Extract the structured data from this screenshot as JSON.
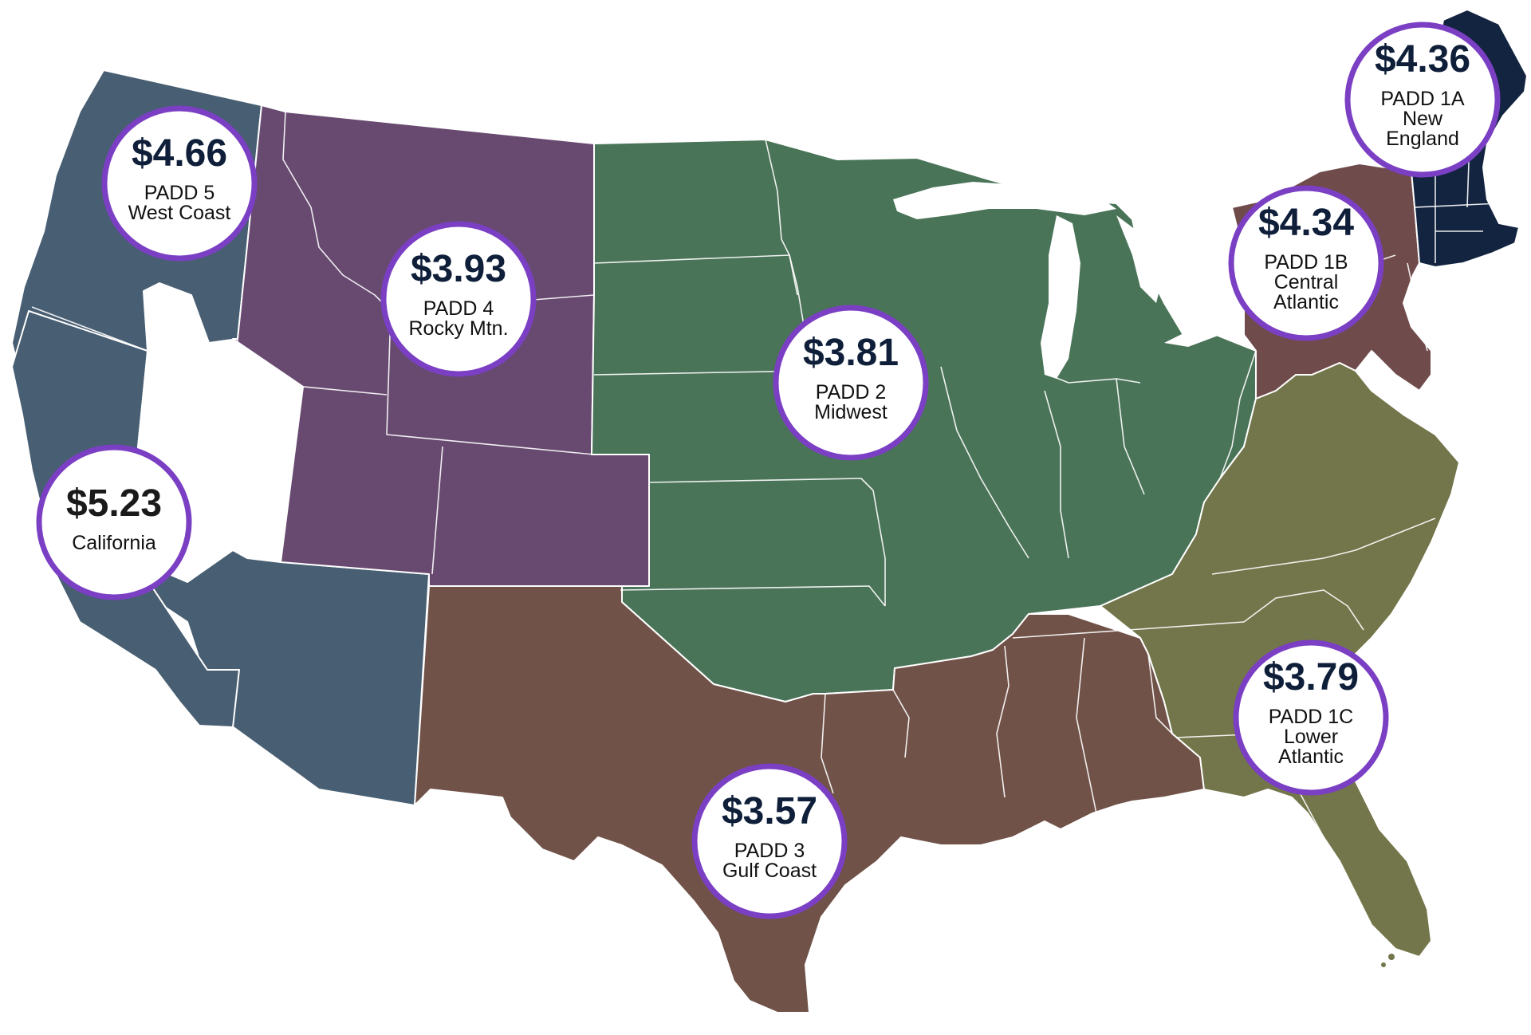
{
  "regions": [
    {
      "id": "padd5",
      "price": "$4.66",
      "label_lines": [
        "PADD 5",
        "West Coast"
      ],
      "color": "#485e72"
    },
    {
      "id": "california",
      "price": "$5.23",
      "label_lines": [
        "California"
      ],
      "color": "#485e72"
    },
    {
      "id": "padd4",
      "price": "$3.93",
      "label_lines": [
        "PADD 4",
        "Rocky Mtn."
      ],
      "color": "#684a70"
    },
    {
      "id": "padd2",
      "price": "$3.81",
      "label_lines": [
        "PADD 2",
        "Midwest"
      ],
      "color": "#4a7458"
    },
    {
      "id": "padd3",
      "price": "$3.57",
      "label_lines": [
        "PADD 3",
        "Gulf Coast"
      ],
      "color": "#705248"
    },
    {
      "id": "padd1a",
      "price": "$4.36",
      "label_lines": [
        "PADD 1A",
        "New",
        "England"
      ],
      "color": "#132440"
    },
    {
      "id": "padd1b",
      "price": "$4.34",
      "label_lines": [
        "PADD 1B",
        "Central",
        "Atlantic"
      ],
      "color": "#704b4b"
    },
    {
      "id": "padd1c",
      "price": "$3.79",
      "label_lines": [
        "PADD 1C",
        "Lower",
        "Atlantic"
      ],
      "color": "#73754a"
    }
  ],
  "badge_ring_color": "#7b3fc4",
  "price_text_color": "#0f1f3a"
}
